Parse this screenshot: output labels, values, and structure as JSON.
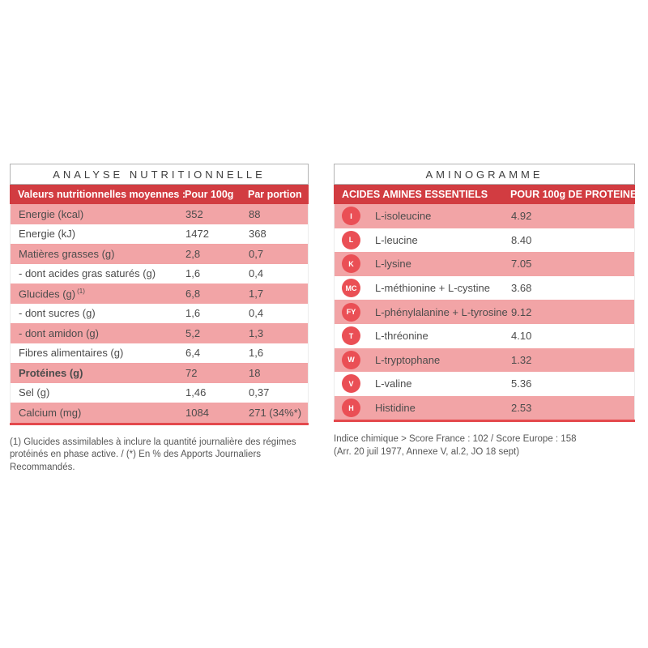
{
  "colors": {
    "header_red": "#d23c41",
    "row_pink": "#f2a4a6",
    "badge_red": "#ea4f55",
    "bottom_red": "#e4494d"
  },
  "nutrition": {
    "title": "ANALYSE NUTRITIONNELLE",
    "columns": {
      "label": "Valeurs nutritionnelles moyennes :",
      "per100": "Pour 100g",
      "portion": "Par portion"
    },
    "rows": [
      {
        "label": "Energie (kcal)",
        "per100": "352",
        "portion": "88"
      },
      {
        "label": "Energie (kJ)",
        "per100": "1472",
        "portion": "368"
      },
      {
        "label": "Matières grasses (g)",
        "per100": "2,8",
        "portion": "0,7"
      },
      {
        "label": "- dont acides gras saturés (g)",
        "per100": "1,6",
        "portion": "0,4"
      },
      {
        "label": "Glucides (g)",
        "sup": "(1)",
        "per100": "6,8",
        "portion": "1,7"
      },
      {
        "label": "- dont sucres (g)",
        "per100": "1,6",
        "portion": "0,4"
      },
      {
        "label": "- dont amidon (g)",
        "per100": "5,2",
        "portion": "1,3"
      },
      {
        "label": "Fibres alimentaires (g)",
        "per100": "6,4",
        "portion": "1,6"
      },
      {
        "label": "Protéines (g)",
        "per100": "72",
        "portion": "18"
      },
      {
        "label": "Sel (g)",
        "per100": "1,46",
        "portion": "0,37"
      },
      {
        "label": "Calcium (mg)",
        "per100": "1084",
        "portion": "271 (34%*)"
      }
    ],
    "footnote": "(1) Glucides assimilables à inclure la quantité journalière des régimes protéinés en phase active. / (*) En % des Apports Journaliers Recommandés."
  },
  "aminogram": {
    "title": "AMINOGRAMME",
    "columns": {
      "label": "ACIDES AMINES ESSENTIELS",
      "value": "POUR 100g DE PROTEINES"
    },
    "rows": [
      {
        "badge": "I",
        "label": "L-isoleucine",
        "value": "4.92"
      },
      {
        "badge": "L",
        "label": "L-leucine",
        "value": "8.40"
      },
      {
        "badge": "K",
        "label": "L-lysine",
        "value": "7.05"
      },
      {
        "badge": "MC",
        "label": "L-méthionine + L-cystine",
        "value": "3.68"
      },
      {
        "badge": "FY",
        "label": "L-phénylalanine + L-tyrosine",
        "value": "9.12"
      },
      {
        "badge": "T",
        "label": "L-thréonine",
        "value": "4.10"
      },
      {
        "badge": "W",
        "label": "L-tryptophane",
        "value": "1.32"
      },
      {
        "badge": "V",
        "label": "L-valine",
        "value": "5.36"
      },
      {
        "badge": "H",
        "label": "Histidine",
        "value": "2.53"
      }
    ],
    "footnote_line1": "Indice chimique > Score France : 102 / Score Europe : 158",
    "footnote_line2": "(Arr. 20 juil 1977, Annexe V, al.2, JO 18 sept)"
  }
}
